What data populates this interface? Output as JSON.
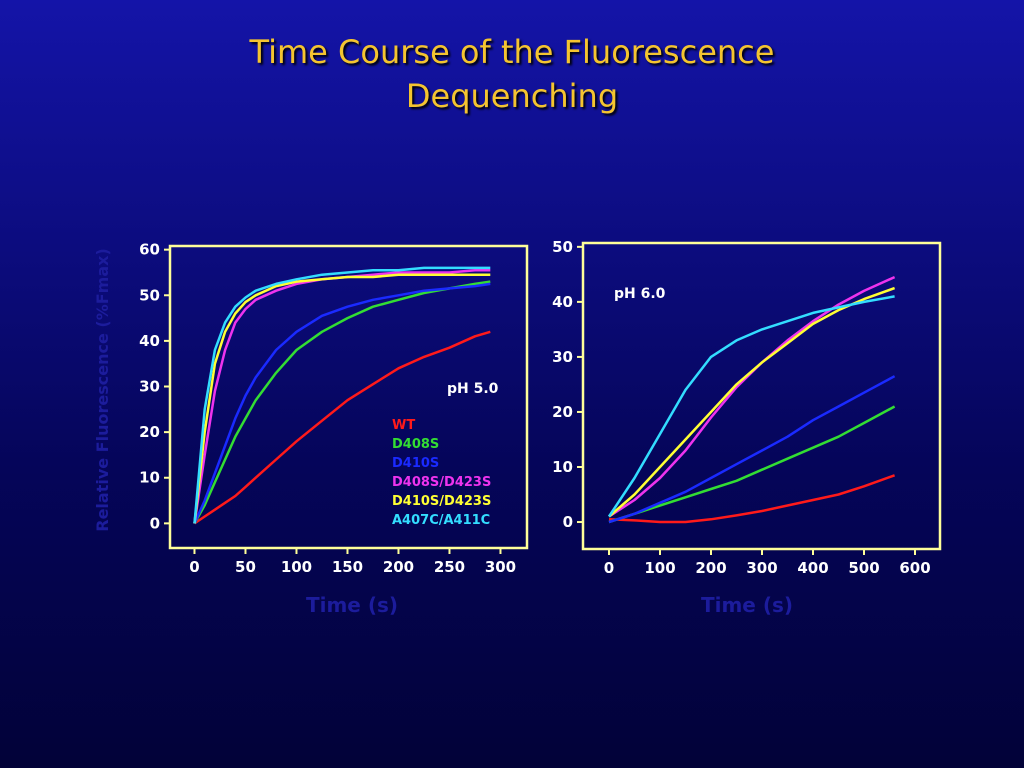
{
  "slide": {
    "title": "Time Course of the Fluorescence Dequenching"
  },
  "chart_data": [
    {
      "type": "line",
      "annotation": "pH 5.0",
      "xlabel": "Time (s)",
      "ylabel": "Relative Fluorescence (%Fmax)",
      "x": [
        0,
        10,
        20,
        30,
        40,
        50,
        60,
        80,
        100,
        125,
        150,
        175,
        200,
        225,
        250,
        275,
        290
      ],
      "series": [
        {
          "name": "WT",
          "color": "#ff1a1a",
          "values": [
            0,
            1.5,
            3,
            4.5,
            6,
            8,
            10,
            14,
            18,
            22.5,
            27,
            30.5,
            34,
            36.5,
            38.5,
            41,
            42
          ]
        },
        {
          "name": "D408S",
          "color": "#33dd33",
          "values": [
            0,
            4,
            9,
            14,
            19,
            23,
            27,
            33,
            38,
            42,
            45,
            47.5,
            49,
            50.5,
            51.5,
            52.5,
            53
          ]
        },
        {
          "name": "D410S",
          "color": "#1a2aff",
          "values": [
            0,
            5,
            11,
            17,
            23,
            28,
            32,
            38,
            42,
            45.5,
            47.5,
            49,
            50,
            51,
            51.5,
            52,
            52.5
          ]
        },
        {
          "name": "D408S/D423S",
          "color": "#ee33ee",
          "values": [
            0,
            15,
            29,
            38,
            44,
            47,
            49,
            51,
            52.5,
            53.5,
            54,
            54.5,
            55,
            55,
            55,
            55.5,
            55.5
          ]
        },
        {
          "name": "D410S/D423S",
          "color": "#ffff33",
          "values": [
            0,
            20,
            35,
            42,
            46,
            48.5,
            50,
            52,
            53,
            53.5,
            54,
            54,
            54.5,
            54.5,
            54.5,
            54.5,
            54.5
          ]
        },
        {
          "name": "A407C/A411C",
          "color": "#33ddff",
          "values": [
            0,
            25,
            38,
            44,
            47.5,
            49.5,
            51,
            52.5,
            53.5,
            54.5,
            55,
            55.5,
            55.5,
            56,
            56,
            56,
            56
          ]
        }
      ],
      "xlim": [
        -24,
        326
      ],
      "ylim": [
        -5.4,
        60.8
      ],
      "xticks": [
        0,
        50,
        100,
        150,
        200,
        250,
        300
      ],
      "yticks": [
        0,
        10,
        20,
        30,
        40,
        50,
        60
      ]
    },
    {
      "type": "line",
      "annotation": "pH 6.0",
      "xlabel": "Time (s)",
      "x": [
        0,
        50,
        100,
        150,
        200,
        250,
        300,
        350,
        400,
        450,
        500,
        560
      ],
      "series": [
        {
          "color": "#ff1a1a",
          "values": [
            0.5,
            0.3,
            0,
            0,
            0.5,
            1.2,
            2,
            3,
            4,
            5,
            6.5,
            8.5
          ]
        },
        {
          "color": "#33dd33",
          "values": [
            0,
            1.5,
            3,
            4.5,
            6,
            7.5,
            9.5,
            11.5,
            13.5,
            15.5,
            18,
            21
          ]
        },
        {
          "color": "#1a2aff",
          "values": [
            0,
            1.5,
            3.5,
            5.5,
            8,
            10.5,
            13,
            15.5,
            18.5,
            21,
            23.5,
            26.5
          ]
        },
        {
          "color": "#ee33ee",
          "values": [
            1,
            4,
            8,
            13,
            19,
            24.5,
            29,
            33,
            36.5,
            39.5,
            42,
            44.5
          ]
        },
        {
          "color": "#ffff33",
          "values": [
            1,
            5,
            10,
            15,
            20,
            25,
            29,
            32.5,
            36,
            38.5,
            40.5,
            42.5
          ]
        },
        {
          "color": "#33ddff",
          "values": [
            1,
            8,
            16,
            24,
            30,
            33,
            35,
            36.5,
            38,
            39,
            40,
            41
          ]
        }
      ],
      "xlim": [
        -51,
        649
      ],
      "ylim": [
        -4.9,
        50.7
      ],
      "xticks": [
        0,
        100,
        200,
        300,
        400,
        500,
        600
      ],
      "yticks": [
        0,
        10,
        20,
        30,
        40,
        50
      ]
    }
  ]
}
